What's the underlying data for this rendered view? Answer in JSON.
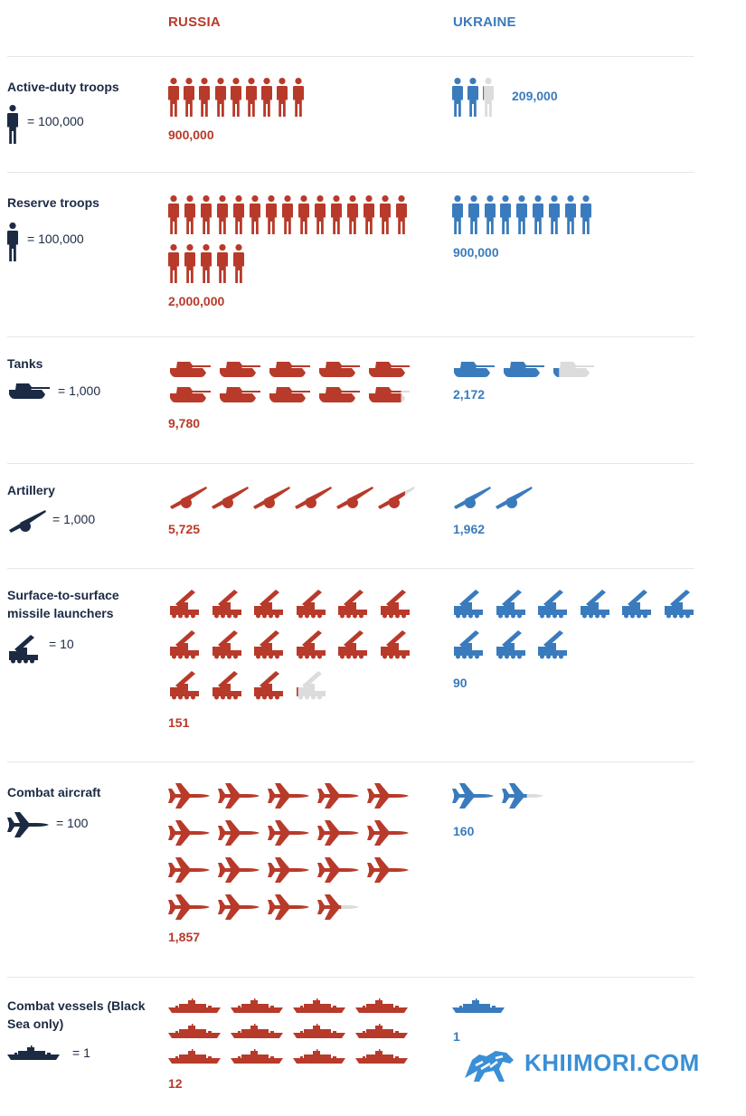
{
  "columns": {
    "russia": "RUSSIA",
    "ukraine": "UKRAINE"
  },
  "colors": {
    "russia": "#b83a2a",
    "ukraine": "#3a7bbd",
    "legend": "#1c2a44",
    "remainder": "#dcdcdc"
  },
  "watermark": "KHIIMORI.COM",
  "chart_data": {
    "type": "table",
    "categories": [
      "Active-duty troops",
      "Reserve troops",
      "Tanks",
      "Artillery",
      "Surface-to-surface missile launchers",
      "Combat aircraft",
      "Combat vessels (Black Sea only)"
    ],
    "rows": [
      {
        "label": "Active-duty troops",
        "legend": "= 100,000",
        "unit": 100000,
        "icon": "soldier-icon",
        "russia": {
          "value": 900000,
          "label": "900,000"
        },
        "ukraine": {
          "value": 209000,
          "label": "209,000"
        }
      },
      {
        "label": "Reserve troops",
        "legend": "= 100,000",
        "unit": 100000,
        "icon": "soldier-icon",
        "russia": {
          "value": 2000000,
          "label": "2,000,000"
        },
        "ukraine": {
          "value": 900000,
          "label": "900,000"
        }
      },
      {
        "label": "Tanks",
        "legend": "= 1,000",
        "unit": 1000,
        "icon": "tank-icon",
        "russia": {
          "value": 9780,
          "label": "9,780"
        },
        "ukraine": {
          "value": 2172,
          "label": "2,172"
        }
      },
      {
        "label": "Artillery",
        "legend": "= 1,000",
        "unit": 1000,
        "icon": "artillery-icon",
        "russia": {
          "value": 5725,
          "label": "5,725"
        },
        "ukraine": {
          "value": 1962,
          "label": "1,962"
        }
      },
      {
        "label": "Surface-to-surface missile launchers",
        "legend": "= 10",
        "unit": 10,
        "icon": "missile-launcher-icon",
        "russia": {
          "value": 151,
          "label": "151"
        },
        "ukraine": {
          "value": 90,
          "label": "90"
        }
      },
      {
        "label": "Combat aircraft",
        "legend": "= 100",
        "unit": 100,
        "icon": "jet-icon",
        "russia": {
          "value": 1857,
          "label": "1,857"
        },
        "ukraine": {
          "value": 160,
          "label": "160"
        }
      },
      {
        "label": "Combat vessels (Black Sea only)",
        "legend": "= 1",
        "unit": 1,
        "icon": "ship-icon",
        "russia": {
          "value": 12,
          "label": "12"
        },
        "ukraine": {
          "value": 1,
          "label": "1"
        }
      }
    ]
  }
}
